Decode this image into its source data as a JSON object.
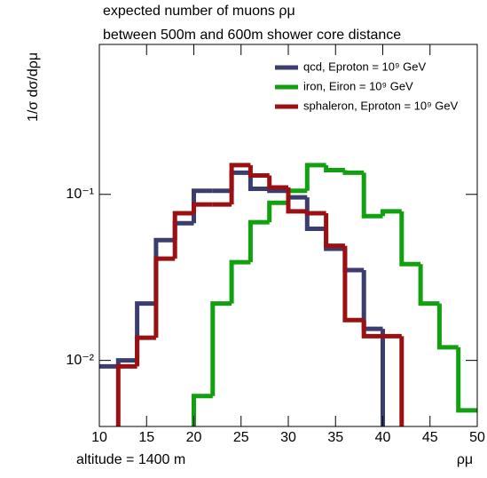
{
  "chart_data": {
    "type": "histogram",
    "title": "expected number of muons ρμ",
    "subtitle": "between 500m and 600m shower core distance",
    "ylabel": "1/σ dσ/dρμ",
    "xlabel": "ρμ",
    "annotation": "altitude = 1400 m",
    "bins": [
      10,
      12,
      14,
      16,
      18,
      20,
      22,
      24,
      26,
      28,
      30,
      32,
      34,
      36,
      38,
      40,
      42,
      44,
      46,
      48,
      50
    ],
    "series": [
      {
        "name": "qcd, Eproton = 10⁹ GeV",
        "color": "#3b3d6e",
        "values": [
          0.0092,
          0.01,
          0.022,
          0.053,
          0.067,
          0.105,
          0.105,
          0.135,
          0.108,
          0.105,
          0.096,
          0.062,
          0.047,
          0.035,
          0.0155,
          0,
          0,
          0,
          0,
          0
        ]
      },
      {
        "name": "iron, Eiron = 10⁹ GeV",
        "color": "#10a010",
        "values": [
          0,
          0,
          0,
          0,
          0,
          0.0061,
          0.022,
          0.039,
          0.068,
          0.089,
          0.105,
          0.15,
          0.14,
          0.135,
          0.074,
          0.079,
          0.038,
          0.022,
          0.012,
          0.005
        ]
      },
      {
        "name": "sphaleron, Eproton = 10⁹ GeV",
        "color": "#9b1010",
        "values": [
          0,
          0.0092,
          0.0137,
          0.041,
          0.077,
          0.087,
          0.087,
          0.15,
          0.13,
          0.11,
          0.079,
          0.077,
          0.049,
          0.0175,
          0.014,
          0.014,
          0,
          0,
          0,
          0
        ]
      }
    ],
    "xlim": [
      10,
      50
    ],
    "xticks": [
      10,
      15,
      20,
      25,
      30,
      35,
      40,
      45,
      50
    ],
    "ylim": [
      0.004,
      0.8
    ],
    "log_y": true,
    "yticks": [
      {
        "value": 0.01,
        "label": "10⁻²"
      },
      {
        "value": 0.1,
        "label": "10⁻¹"
      }
    ],
    "legend": "top-right"
  }
}
